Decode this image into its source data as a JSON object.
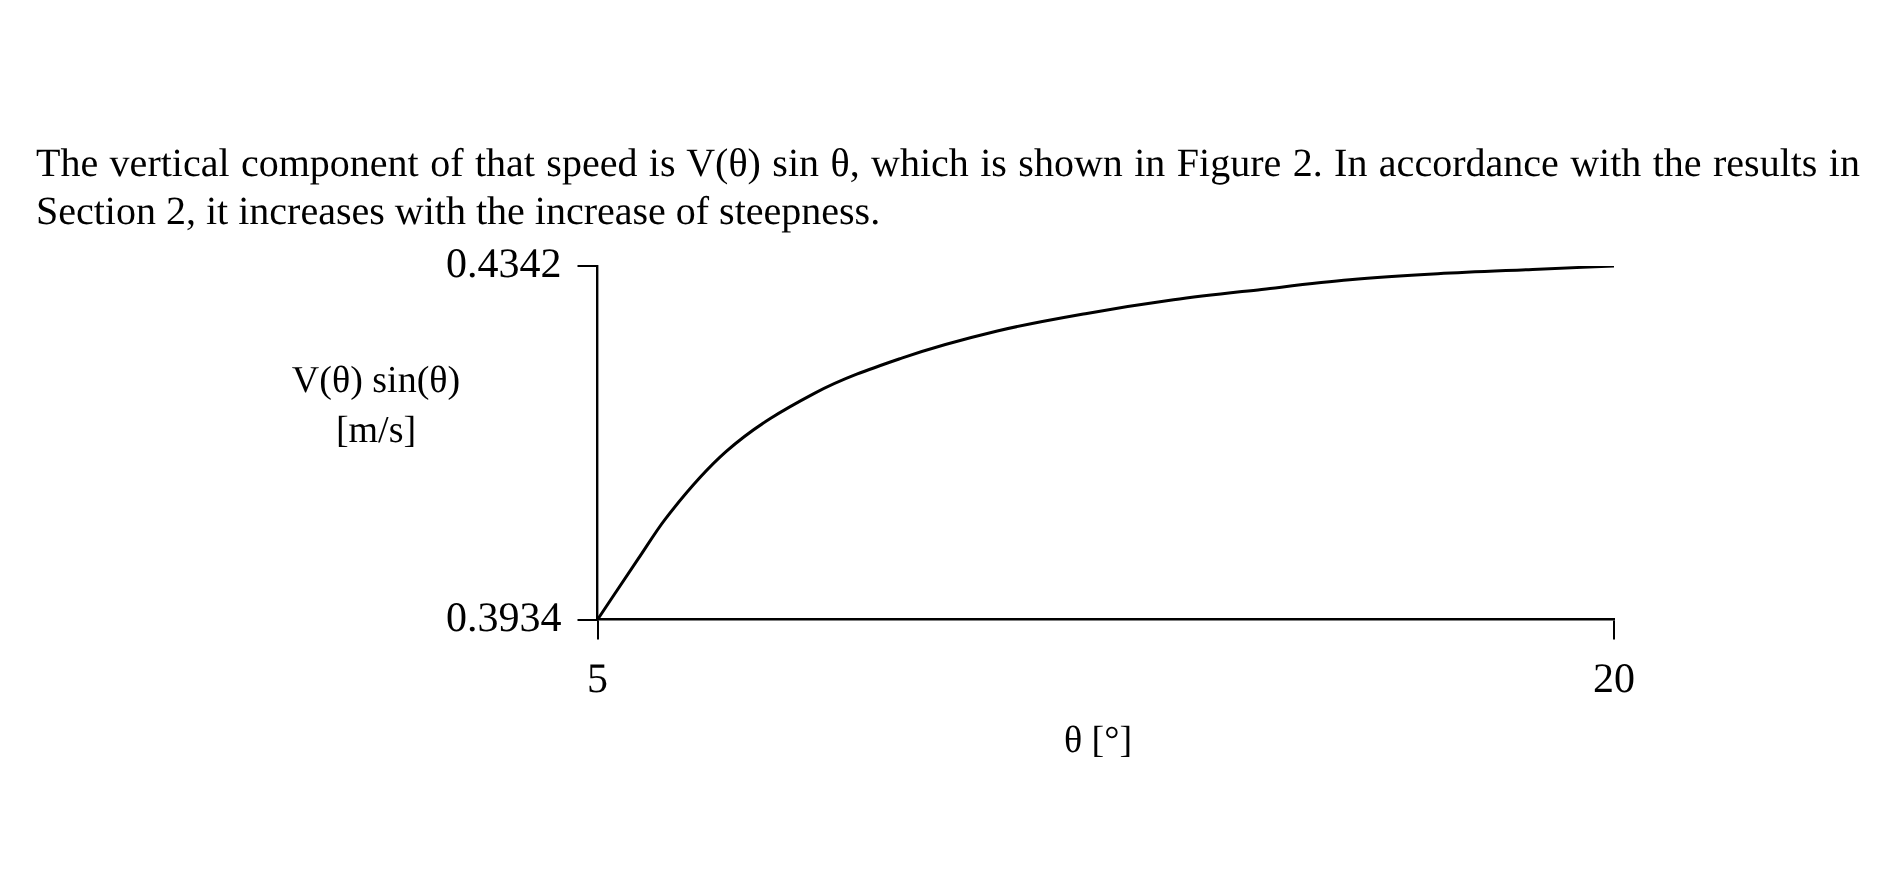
{
  "chart_data": {
    "type": "line",
    "annotations": [
      "The vertical component of that speed is V(θ) sin θ, which is shown in Figure 2. In accordance with the results in Section 2, it increases with the increase of steepness."
    ],
    "xlabel": "θ [°]",
    "ylabel": "V(θ) sin(θ)\n[m/s]",
    "series": [
      {
        "color": "#000000",
        "x": [
          5,
          5.6,
          6,
          6.9,
          8.2,
          9.5,
          10.9,
          12.2,
          13.5,
          14.8,
          16.1,
          17.4,
          18.8,
          20
        ],
        "values": [
          0.3934,
          0.4004,
          0.405,
          0.4128,
          0.4195,
          0.4236,
          0.4267,
          0.4287,
          0.4303,
          0.4315,
          0.4326,
          0.4333,
          0.4338,
          0.4342
        ]
      }
    ],
    "xlim": [
      5,
      20
    ],
    "ylim": [
      0.3934,
      0.4342
    ],
    "xticks": [
      5,
      20
    ],
    "yticks": [
      0.3934,
      0.4342
    ],
    "grid": false,
    "legend": false,
    "marker": "none",
    "line_style": "solid"
  }
}
